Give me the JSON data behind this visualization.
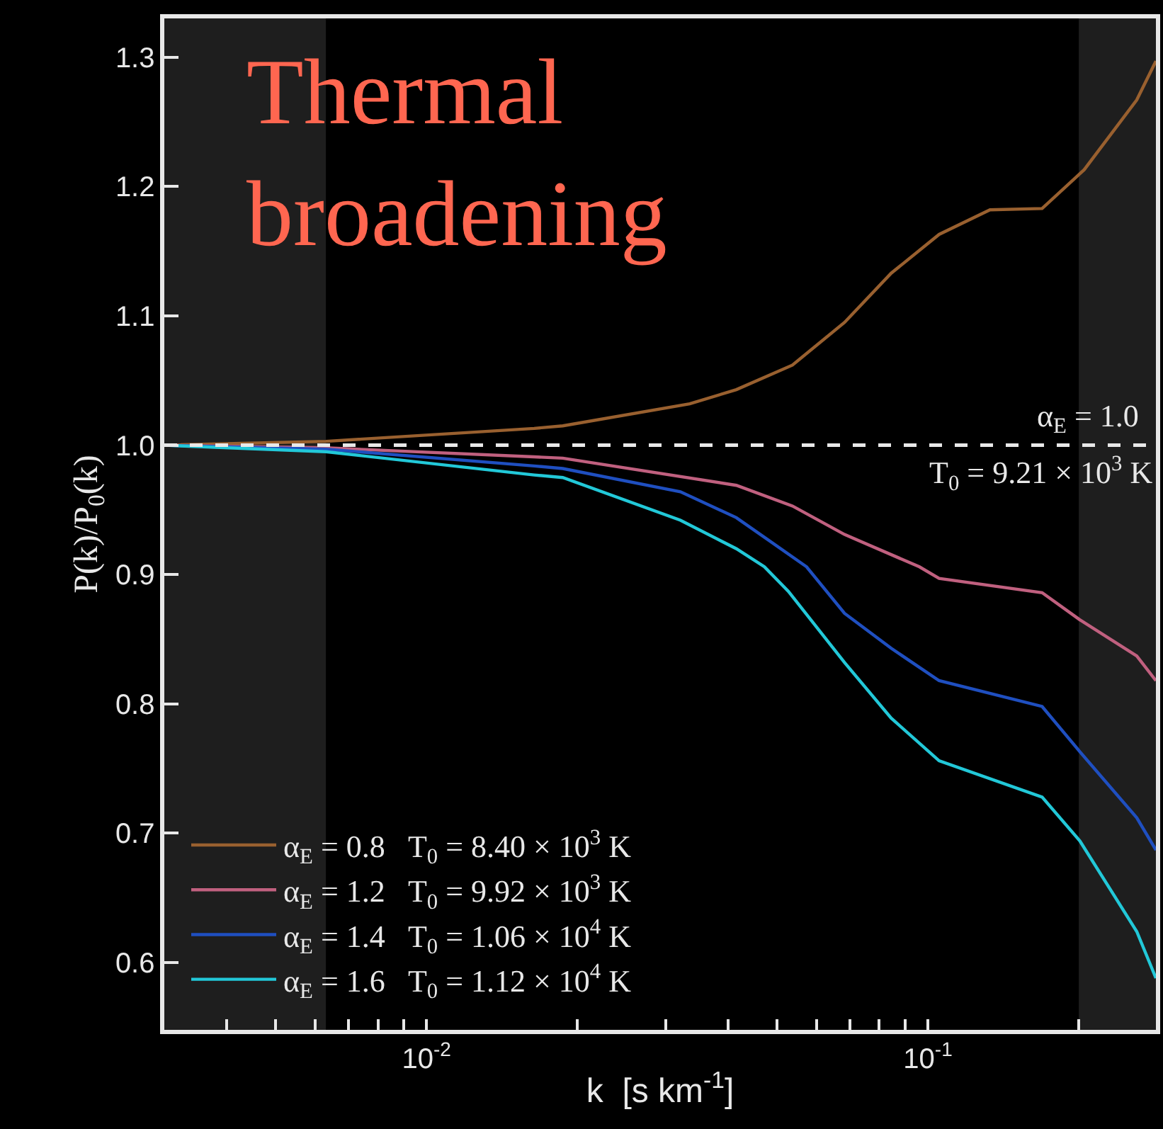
{
  "chart_data": {
    "type": "line",
    "xlabel": "k  [s km$^{-1}$]",
    "ylabel": "P(k)/P$_{0}$(k)",
    "log": "x",
    "grid": false,
    "legend": "bottom left",
    "marker": "none",
    "line_style": "solid",
    "xlim": [
      0.003,
      0.285
    ],
    "ylim": [
      0.548,
      1.33
    ],
    "xticks": [
      {
        "value": 0.004,
        "label": null
      },
      {
        "value": 0.005,
        "label": null
      },
      {
        "value": 0.006,
        "label": null
      },
      {
        "value": 0.007,
        "label": null
      },
      {
        "value": 0.008,
        "label": null
      },
      {
        "value": 0.009,
        "label": null
      },
      {
        "value": 0.01,
        "label": "10$^{-2}$"
      },
      {
        "value": 0.02,
        "label": null
      },
      {
        "value": 0.03,
        "label": null
      },
      {
        "value": 0.04,
        "label": null
      },
      {
        "value": 0.05,
        "label": null
      },
      {
        "value": 0.06,
        "label": null
      },
      {
        "value": 0.07,
        "label": null
      },
      {
        "value": 0.08,
        "label": null
      },
      {
        "value": 0.09,
        "label": null
      },
      {
        "value": 0.1,
        "label": "10$^{-1}$"
      },
      {
        "value": 0.2,
        "label": null
      }
    ],
    "yticks": [
      {
        "value": 0.6,
        "label": "0.6"
      },
      {
        "value": 0.7,
        "label": "0.7"
      },
      {
        "value": 0.8,
        "label": "0.8"
      },
      {
        "value": 0.9,
        "label": "0.9"
      },
      {
        "value": 1.0,
        "label": "1.0"
      },
      {
        "value": 1.1,
        "label": "1.1"
      },
      {
        "value": 1.2,
        "label": "1.2"
      },
      {
        "value": 1.3,
        "label": "1.3"
      }
    ],
    "series": [
      {
        "name": "α$_{E}$ = 0.8   T$_{0}$ = 8.40 × 10$^{3}$ K",
        "color": "#99602f",
        "x": [
          0.003,
          0.0063,
          0.0164,
          0.0187,
          0.0335,
          0.0415,
          0.0537,
          0.0682,
          0.0845,
          0.1053,
          0.133,
          0.169,
          0.205,
          0.261,
          0.285
        ],
        "values": [
          1.0,
          1.003,
          1.013,
          1.015,
          1.032,
          1.043,
          1.062,
          1.095,
          1.133,
          1.163,
          1.182,
          1.183,
          1.213,
          1.267,
          1.297
        ]
      },
      {
        "name": "α$_{E}$ = 1.2   T$_{0}$ = 9.92 × 10$^{3}$ K",
        "color": "#c0607f",
        "x": [
          0.003,
          0.0063,
          0.0164,
          0.0187,
          0.0415,
          0.0537,
          0.0682,
          0.0962,
          0.1053,
          0.169,
          0.201,
          0.261,
          0.285
        ],
        "values": [
          1.0,
          0.998,
          0.991,
          0.99,
          0.969,
          0.953,
          0.931,
          0.906,
          0.897,
          0.886,
          0.865,
          0.837,
          0.818
        ]
      },
      {
        "name": "α$_{E}$ = 1.4   T$_{0}$ = 1.06 × 10$^{4}$ K",
        "color": "#1f4fc0",
        "x": [
          0.003,
          0.0063,
          0.0164,
          0.0187,
          0.0321,
          0.0415,
          0.0573,
          0.0682,
          0.0845,
          0.1053,
          0.169,
          0.201,
          0.261,
          0.285
        ],
        "values": [
          1.0,
          0.997,
          0.984,
          0.982,
          0.964,
          0.944,
          0.906,
          0.87,
          0.843,
          0.818,
          0.798,
          0.763,
          0.712,
          0.687
        ]
      },
      {
        "name": "α$_{E}$ = 1.6   T$_{0}$ = 1.12 × 10$^{4}$ K",
        "color": "#22c8d8",
        "x": [
          0.003,
          0.0063,
          0.0164,
          0.0187,
          0.0321,
          0.0415,
          0.0472,
          0.0527,
          0.0682,
          0.0845,
          0.1053,
          0.169,
          0.201,
          0.261,
          0.285
        ],
        "values": [
          1.0,
          0.995,
          0.977,
          0.975,
          0.942,
          0.92,
          0.906,
          0.887,
          0.832,
          0.789,
          0.756,
          0.728,
          0.694,
          0.624,
          0.588
        ]
      }
    ],
    "bands": [
      {
        "axis": "x",
        "from": 0.003,
        "to": 0.0063,
        "color": "#1e1e1e"
      },
      {
        "axis": "x",
        "from": 0.2,
        "to": 0.285,
        "color": "#1e1e1e"
      }
    ],
    "ref_lines": [
      {
        "axis": "y",
        "value": 1.0,
        "label": "α$_{E}$ = 1.0",
        "color": "#e8e8e8",
        "line_style": "dashed"
      }
    ],
    "annotations": [
      "Thermal",
      "broadening",
      "T$_{0}$ = 9.21 × 10$^{3}$ K"
    ]
  }
}
